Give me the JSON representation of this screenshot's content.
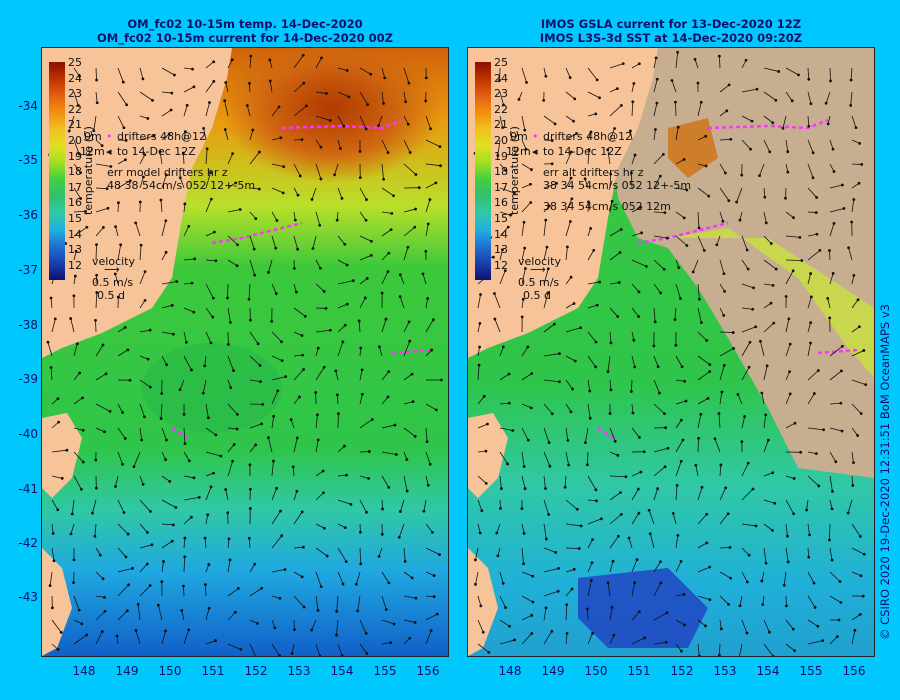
{
  "left_panel": {
    "title_line1": "OM_fc02 10-15m temp. 14-Dec-2020",
    "title_line2": "OM_fc02 10-15m current for 14-Dec-2020 00Z",
    "legend_drifters_a": "drifters 48h@12",
    "legend_drifters_b": "to 14-Dec 12Z",
    "legend_depth_a": "0m",
    "legend_depth_b": "12m",
    "err_line1": "err model drifters hr z",
    "err_line2": "48 38 54cm/s 052 12+-5m",
    "err_line3": "",
    "colorbar_label": "temperature (C)"
  },
  "right_panel": {
    "title_line1": "IMOS GSLA current for 13-Dec-2020 12Z",
    "title_line2": "IMOS L3S-3d SST at 14-Dec-2020 09:20Z",
    "legend_drifters_a": "drifters 48h@12",
    "legend_drifters_b": "to 14-Dec 12Z",
    "legend_depth_a": "0m",
    "legend_depth_b": "12m",
    "err_line1": "err alt drifters hr z",
    "err_line2": "38 34 54cm/s 052 12+-5m",
    "err_line3": "38 34 54cm/s 052 12m",
    "colorbar_label": "temperature (C)"
  },
  "velocity_key": {
    "label": "velocity",
    "speed": "0.5 m/s",
    "duration": "0.5 d"
  },
  "colorbar_ticks": [
    "25",
    "24",
    "23",
    "22",
    "21",
    "20",
    "19",
    "18",
    "17",
    "16",
    "15",
    "14",
    "13",
    "12"
  ],
  "y_axis_labels": [
    "-34",
    "-35",
    "-36",
    "-37",
    "-38",
    "-39",
    "-40",
    "-41",
    "-42",
    "-43"
  ],
  "x_axis_labels": [
    "148",
    "149",
    "150",
    "151",
    "152",
    "153",
    "154",
    "155",
    "156"
  ],
  "side_caption": "© CSIRO 2020  19-Dec-2020 12:31:51 BoM OceanMAPS v3",
  "colors": {
    "background": "#00c8ff",
    "land": "#f7c49a",
    "drifter": "#ff33ff",
    "no_data": "#c8ae90"
  }
}
